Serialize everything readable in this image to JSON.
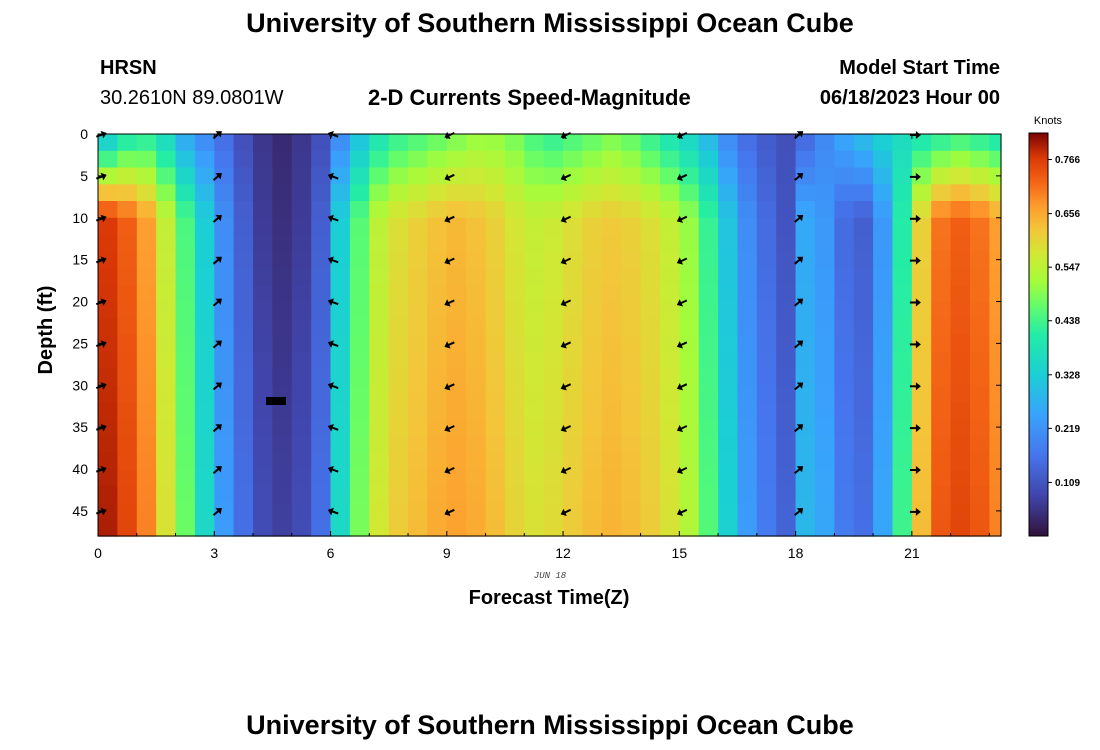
{
  "title_top": "University of Southern Mississippi Ocean Cube",
  "title_bottom": "University of Southern Mississippi Ocean Cube",
  "station": {
    "name": "HRSN",
    "coords": "30.2610N  89.0801W"
  },
  "model_start": {
    "label": "Model Start Time",
    "value": "06/18/2023 Hour 00"
  },
  "chart_data": {
    "type": "heatmap",
    "title": "2-D Currents Speed-Magnitude",
    "xlabel": "Forecast Time(Z)",
    "ylabel": "Depth (ft)",
    "date_label": "JUN 18",
    "xlim": [
      0,
      23.3
    ],
    "ylim": [
      0,
      48
    ],
    "y_inverted": true,
    "x_ticks": [
      0,
      3,
      6,
      9,
      12,
      15,
      18,
      21
    ],
    "y_ticks": [
      0,
      5,
      10,
      15,
      20,
      25,
      30,
      35,
      40,
      45
    ],
    "colorbar": {
      "unit": "Knots",
      "min": 0.0,
      "max": 0.82,
      "ticks": [
        "0.766",
        "0.656",
        "0.547",
        "0.438",
        "0.328",
        "0.219",
        "0.109"
      ],
      "tick_values": [
        0.766,
        0.656,
        0.547,
        0.438,
        0.328,
        0.219,
        0.109
      ]
    },
    "hours": [
      0,
      0.5,
      1,
      1.5,
      2,
      2.5,
      3,
      3.5,
      4,
      4.5,
      5,
      5.5,
      6,
      6.5,
      7,
      7.5,
      8,
      8.5,
      9,
      9.5,
      10,
      10.5,
      11,
      11.5,
      12,
      12.5,
      13,
      13.5,
      14,
      14.5,
      15,
      15.5,
      16,
      16.5,
      17,
      17.5,
      18,
      18.5,
      19,
      19.5,
      20,
      20.5,
      21,
      21.5,
      22,
      22.5,
      23
    ],
    "speed_deep_knots": [
      0.76,
      0.72,
      0.66,
      0.55,
      0.44,
      0.32,
      0.2,
      0.12,
      0.06,
      0.04,
      0.06,
      0.12,
      0.32,
      0.45,
      0.54,
      0.58,
      0.6,
      0.62,
      0.63,
      0.62,
      0.6,
      0.57,
      0.55,
      0.56,
      0.58,
      0.6,
      0.61,
      0.6,
      0.58,
      0.55,
      0.5,
      0.42,
      0.3,
      0.2,
      0.14,
      0.1,
      0.25,
      0.22,
      0.14,
      0.12,
      0.22,
      0.4,
      0.6,
      0.7,
      0.72,
      0.7,
      0.66
    ],
    "speed_surface_knots": [
      0.3,
      0.38,
      0.4,
      0.35,
      0.25,
      0.2,
      0.15,
      0.1,
      0.06,
      0.04,
      0.06,
      0.1,
      0.2,
      0.3,
      0.38,
      0.42,
      0.44,
      0.46,
      0.48,
      0.5,
      0.5,
      0.48,
      0.44,
      0.42,
      0.44,
      0.46,
      0.48,
      0.46,
      0.42,
      0.38,
      0.34,
      0.28,
      0.2,
      0.15,
      0.12,
      0.1,
      0.14,
      0.2,
      0.26,
      0.3,
      0.34,
      0.36,
      0.38,
      0.4,
      0.42,
      0.4,
      0.38
    ],
    "arrow_hours": [
      0,
      3,
      6,
      9,
      12,
      15,
      18,
      21
    ],
    "arrow_depths": [
      0,
      5,
      10,
      15,
      20,
      25,
      30,
      35,
      40,
      45
    ],
    "arrow_directions": [
      "east-northeast",
      "northeast",
      "west-northwest",
      "southwest",
      "southwest",
      "southwest",
      "northeast",
      "east"
    ]
  }
}
